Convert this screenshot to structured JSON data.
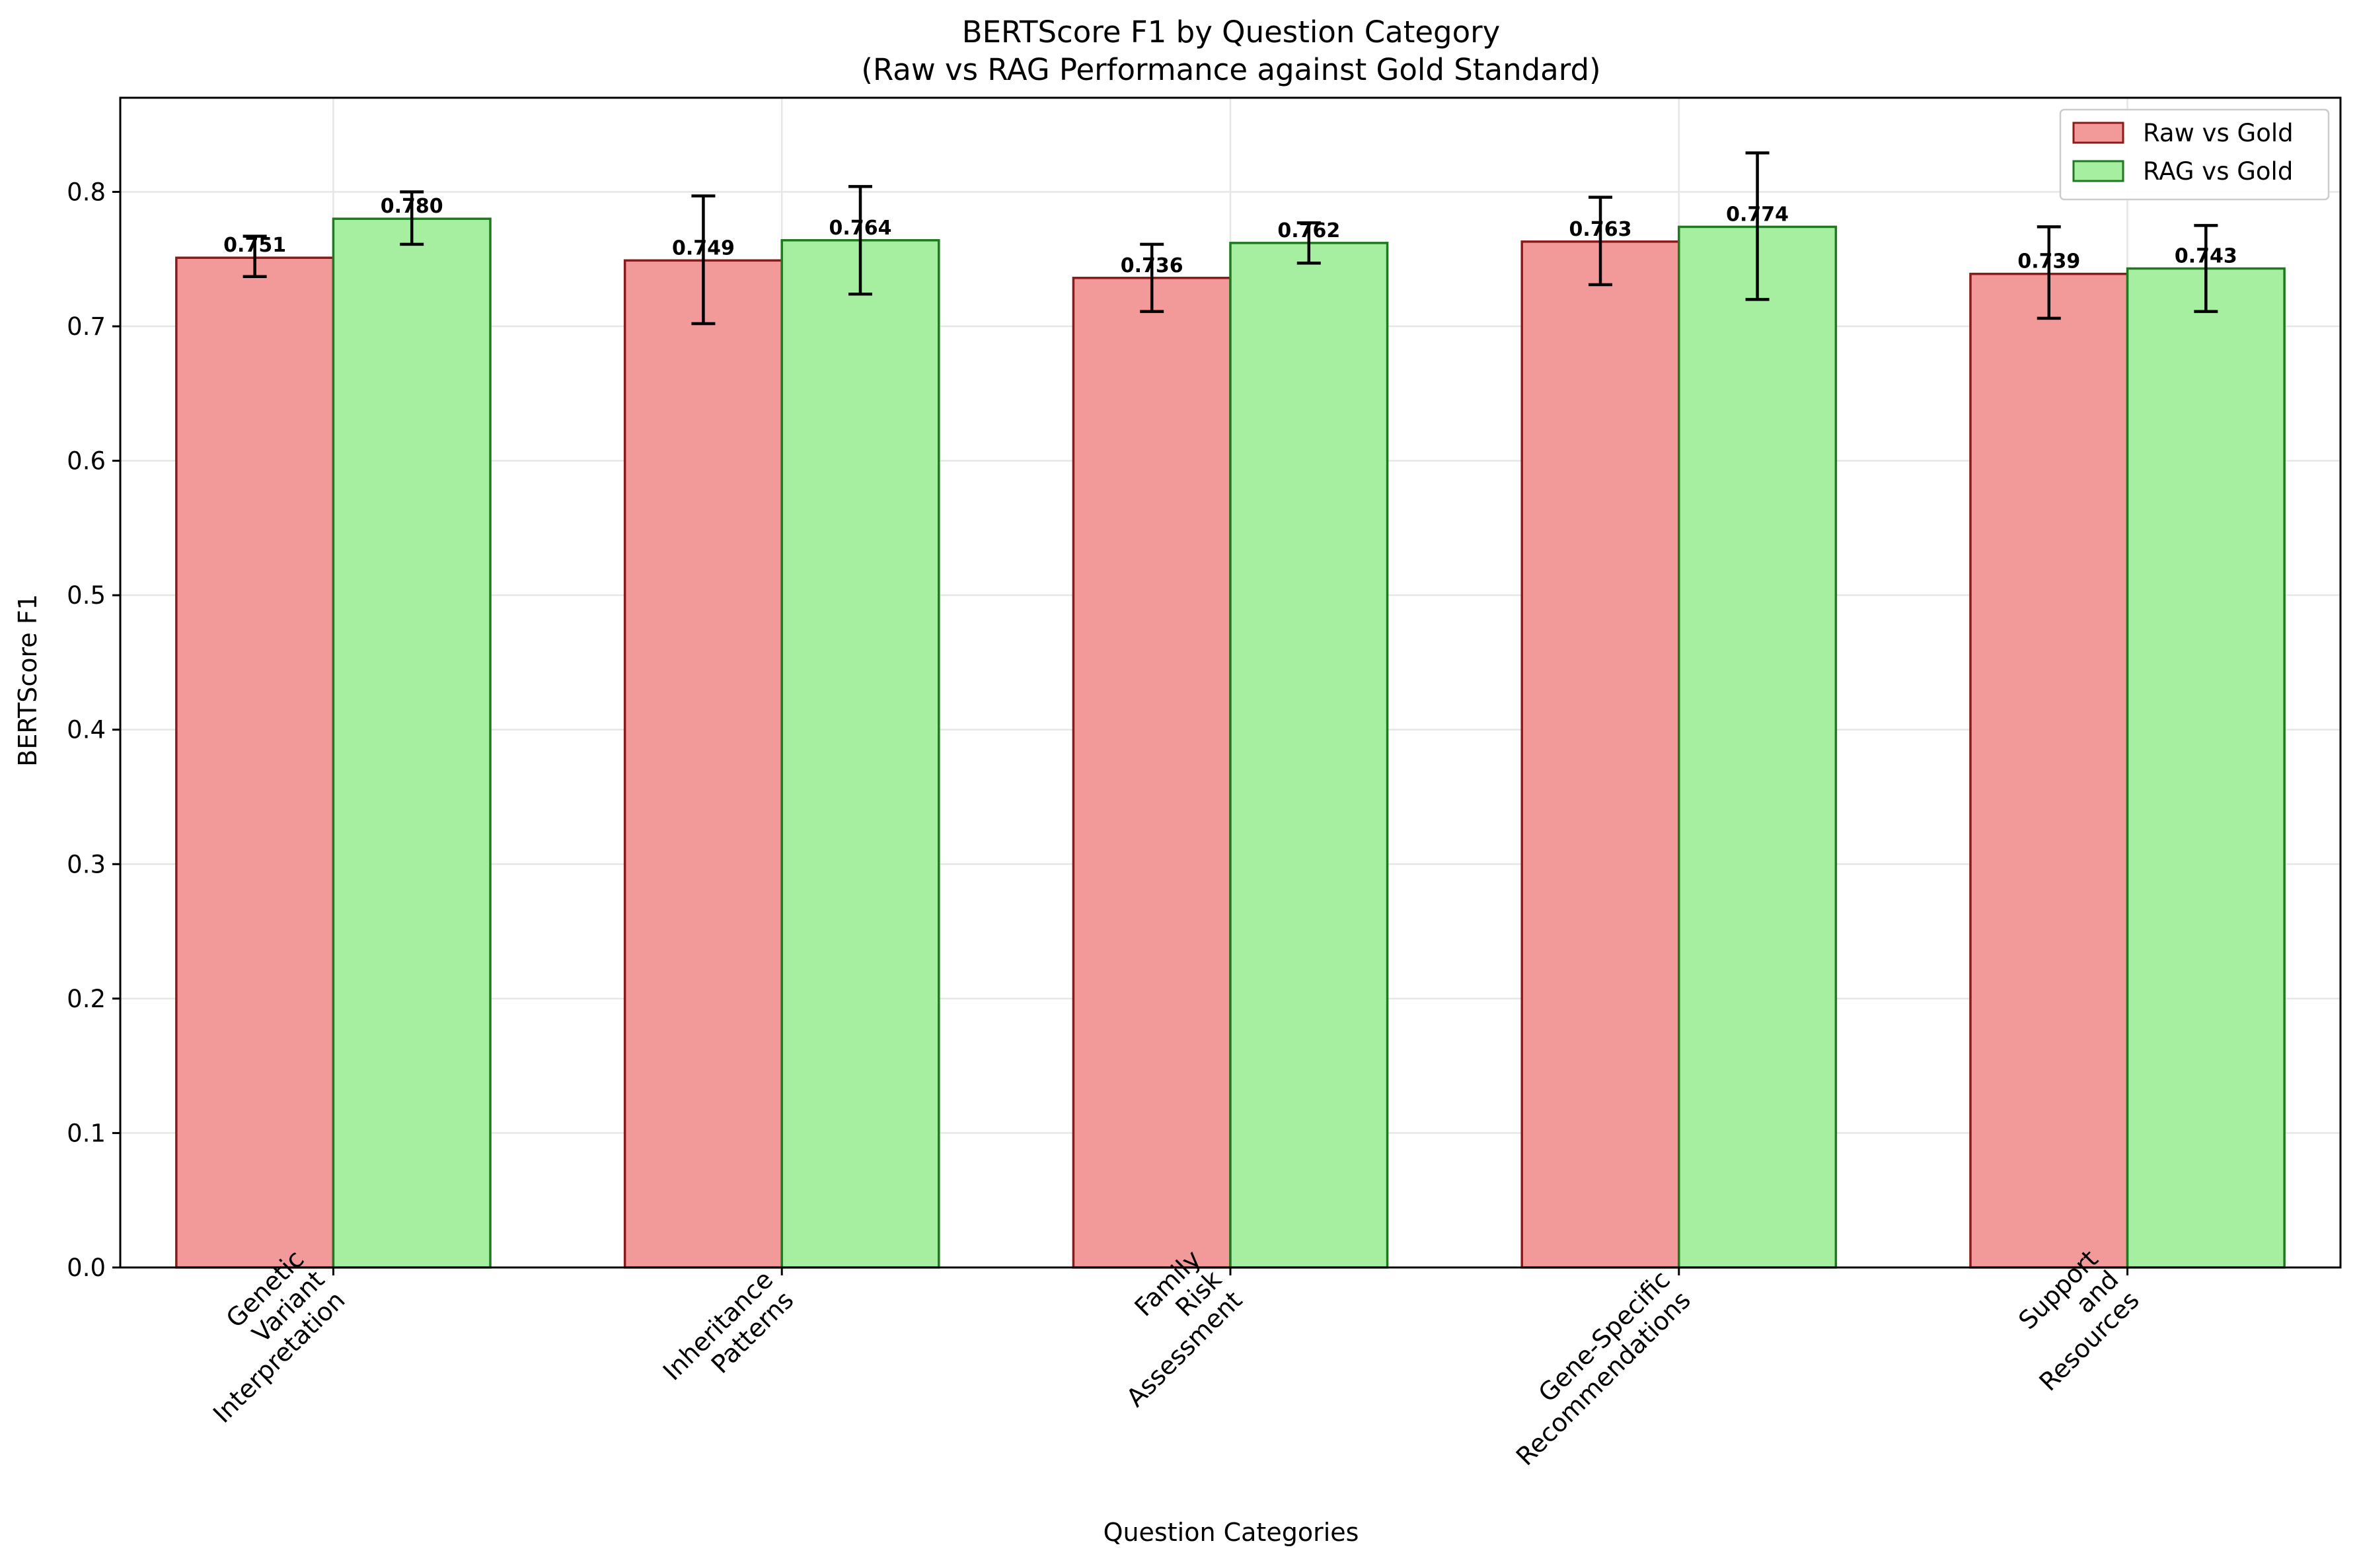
{
  "chart_data": {
    "type": "bar",
    "title": "BERTScore F1 by Question Category",
    "subtitle": "(Raw vs RAG Performance against Gold Standard)",
    "xlabel": "Question Categories",
    "ylabel": "BERTScore F1",
    "ylim": [
      0,
      0.87
    ],
    "yticks": [
      0.0,
      0.1,
      0.2,
      0.3,
      0.4,
      0.5,
      0.6,
      0.7,
      0.8
    ],
    "ytick_labels": [
      "0.0",
      "0.1",
      "0.2",
      "0.3",
      "0.4",
      "0.5",
      "0.6",
      "0.7",
      "0.8"
    ],
    "grid": true,
    "legend_position": "top-right",
    "categories": [
      [
        "Genetic",
        "Variant",
        "Interpretation"
      ],
      [
        "Inheritance",
        "Patterns"
      ],
      [
        "Family",
        "Risk",
        "Assessment"
      ],
      [
        "Gene-Specific",
        "Recommendations"
      ],
      [
        "Support",
        "and",
        "Resources"
      ]
    ],
    "series": [
      {
        "name": "Raw vs Gold",
        "fill": "#f29a9a",
        "edge": "#8b1a1a",
        "values": [
          0.751,
          0.749,
          0.736,
          0.763,
          0.739
        ],
        "value_labels": [
          "0.751",
          "0.749",
          "0.736",
          "0.763",
          "0.739"
        ],
        "err_low": [
          0.737,
          0.702,
          0.711,
          0.731,
          0.706
        ],
        "err_high": [
          0.767,
          0.797,
          0.761,
          0.796,
          0.774
        ]
      },
      {
        "name": "RAG vs Gold",
        "fill": "#a6efa0",
        "edge": "#1f7a1f",
        "values": [
          0.78,
          0.764,
          0.762,
          0.774,
          0.743
        ],
        "value_labels": [
          "0.780",
          "0.764",
          "0.762",
          "0.774",
          "0.743"
        ],
        "err_low": [
          0.761,
          0.724,
          0.747,
          0.72,
          0.711
        ],
        "err_high": [
          0.8,
          0.804,
          0.777,
          0.829,
          0.775
        ]
      }
    ]
  }
}
